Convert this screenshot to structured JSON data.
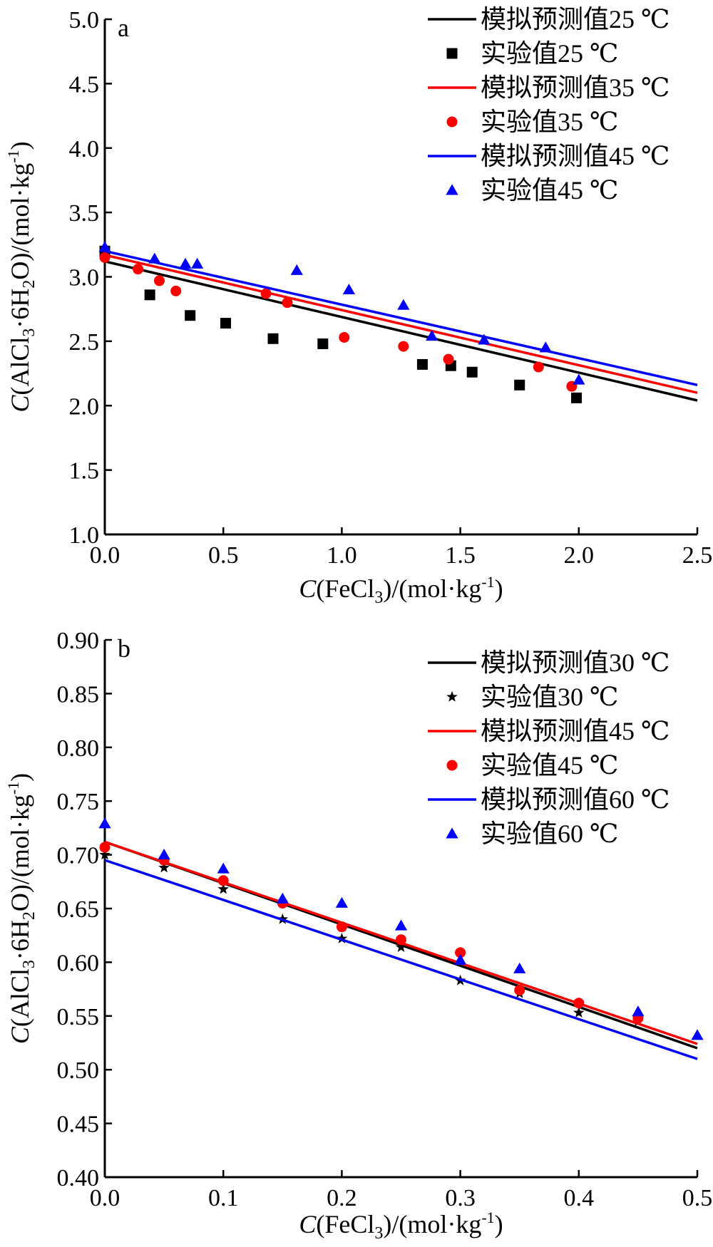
{
  "chart_data": [
    {
      "type": "scatter",
      "panel": "a",
      "xlabel": {
        "prefix": "C",
        "formula": "(FeCl",
        "sub": "3",
        "rest": ")/(mol·kg",
        "sup": "-1",
        "end": ")"
      },
      "ylabel": {
        "prefix": "C",
        "p1": "(AlCl",
        "s1": "3",
        "p2": "·6H",
        "s2": "2",
        "p3": "O)/(mol·kg",
        "sup": "-1",
        "end": ")"
      },
      "xlim": [
        0,
        2.5
      ],
      "ylim": [
        1.0,
        5.0
      ],
      "xticks": [
        "0.0",
        "0.5",
        "1.0",
        "1.5",
        "2.0",
        "2.5"
      ],
      "xtick_values": [
        0,
        0.5,
        1.0,
        1.5,
        2.0,
        2.5
      ],
      "yticks": [
        "1.0",
        "1.5",
        "2.0",
        "2.5",
        "3.0",
        "3.5",
        "4.0",
        "4.5",
        "5.0"
      ],
      "ytick_values": [
        1.0,
        1.5,
        2.0,
        2.5,
        3.0,
        3.5,
        4.0,
        4.5,
        5.0
      ],
      "legend_position": "top-right",
      "series": [
        {
          "name": "模拟预测值25 ℃",
          "kind": "line",
          "color": "#000000",
          "x": [
            0,
            2.5
          ],
          "y": [
            3.12,
            2.04
          ]
        },
        {
          "name": "实验值25 ℃",
          "kind": "points",
          "marker": "square",
          "color": "#000000",
          "x": [
            0.0,
            0.19,
            0.36,
            0.51,
            0.71,
            0.92,
            1.34,
            1.46,
            1.55,
            1.75,
            1.99
          ],
          "y": [
            3.2,
            2.86,
            2.7,
            2.64,
            2.52,
            2.48,
            2.32,
            2.31,
            2.26,
            2.16,
            2.06
          ]
        },
        {
          "name": "模拟预测值35 ℃",
          "kind": "line",
          "color": "#ff0000",
          "x": [
            0,
            2.5
          ],
          "y": [
            3.17,
            2.1
          ]
        },
        {
          "name": "实验值35 ℃",
          "kind": "points",
          "marker": "circle",
          "color": "#ff0000",
          "x": [
            0.0,
            0.14,
            0.23,
            0.3,
            0.68,
            0.77,
            1.01,
            1.26,
            1.45,
            1.83,
            1.97
          ],
          "y": [
            3.15,
            3.06,
            2.97,
            2.89,
            2.87,
            2.8,
            2.53,
            2.46,
            2.36,
            2.3,
            2.15
          ]
        },
        {
          "name": "模拟预测值45 ℃",
          "kind": "line",
          "color": "#0000ff",
          "x": [
            0,
            2.5
          ],
          "y": [
            3.2,
            2.16
          ]
        },
        {
          "name": "实验值45 ℃",
          "kind": "points",
          "marker": "triangle",
          "color": "#0000ff",
          "x": [
            0.0,
            0.21,
            0.34,
            0.39,
            0.81,
            1.03,
            1.26,
            1.38,
            1.6,
            1.86,
            2.0
          ],
          "y": [
            3.23,
            3.14,
            3.1,
            3.1,
            3.05,
            2.9,
            2.78,
            2.54,
            2.51,
            2.45,
            2.2
          ]
        }
      ]
    },
    {
      "type": "scatter",
      "panel": "b",
      "xlabel": {
        "prefix": "C",
        "formula": "(FeCl",
        "sub": "3",
        "rest": ")/(mol·kg",
        "sup": "-1",
        "end": ")"
      },
      "ylabel": {
        "prefix": "C",
        "p1": "(AlCl",
        "s1": "3",
        "p2": "·6H",
        "s2": "2",
        "p3": "O)/(mol·kg",
        "sup": "-1",
        "end": ")"
      },
      "xlim": [
        0,
        0.5
      ],
      "ylim": [
        0.4,
        0.9
      ],
      "xticks": [
        "0.0",
        "0.1",
        "0.2",
        "0.3",
        "0.4",
        "0.5"
      ],
      "xtick_values": [
        0,
        0.1,
        0.2,
        0.3,
        0.4,
        0.5
      ],
      "yticks": [
        "0.40",
        "0.45",
        "0.50",
        "0.55",
        "0.60",
        "0.65",
        "0.70",
        "0.75",
        "0.80",
        "0.85",
        "0.90"
      ],
      "ytick_values": [
        0.4,
        0.45,
        0.5,
        0.55,
        0.6,
        0.65,
        0.7,
        0.75,
        0.8,
        0.85,
        0.9
      ],
      "legend_position": "top-right",
      "series": [
        {
          "name": "模拟预测值30 ℃",
          "kind": "line",
          "color": "#000000",
          "x": [
            0,
            0.5
          ],
          "y": [
            0.712,
            0.52
          ]
        },
        {
          "name": "实验值30 ℃",
          "kind": "points",
          "marker": "star",
          "color": "#000000",
          "x": [
            0.0,
            0.05,
            0.1,
            0.15,
            0.2,
            0.25,
            0.3,
            0.35,
            0.4,
            0.45
          ],
          "y": [
            0.7,
            0.688,
            0.668,
            0.64,
            0.622,
            0.614,
            0.583,
            0.571,
            0.553,
            0.545
          ]
        },
        {
          "name": "模拟预测值45 ℃",
          "kind": "line",
          "color": "#ff0000",
          "x": [
            0,
            0.5
          ],
          "y": [
            0.712,
            0.524
          ]
        },
        {
          "name": "实验值45 ℃",
          "kind": "points",
          "marker": "circle",
          "color": "#ff0000",
          "x": [
            0.0,
            0.05,
            0.1,
            0.15,
            0.2,
            0.25,
            0.3,
            0.35,
            0.4,
            0.45
          ],
          "y": [
            0.707,
            0.695,
            0.676,
            0.655,
            0.633,
            0.621,
            0.609,
            0.574,
            0.562,
            0.548
          ]
        },
        {
          "name": "模拟预测值60 ℃",
          "kind": "line",
          "color": "#0000ff",
          "x": [
            0,
            0.5
          ],
          "y": [
            0.695,
            0.51
          ]
        },
        {
          "name": "实验值60 ℃",
          "kind": "points",
          "marker": "triangle",
          "color": "#0000ff",
          "x": [
            0.0,
            0.05,
            0.1,
            0.15,
            0.2,
            0.25,
            0.3,
            0.35,
            0.45,
            0.5
          ],
          "y": [
            0.729,
            0.7,
            0.687,
            0.659,
            0.655,
            0.634,
            0.602,
            0.594,
            0.554,
            0.532
          ]
        }
      ]
    }
  ]
}
